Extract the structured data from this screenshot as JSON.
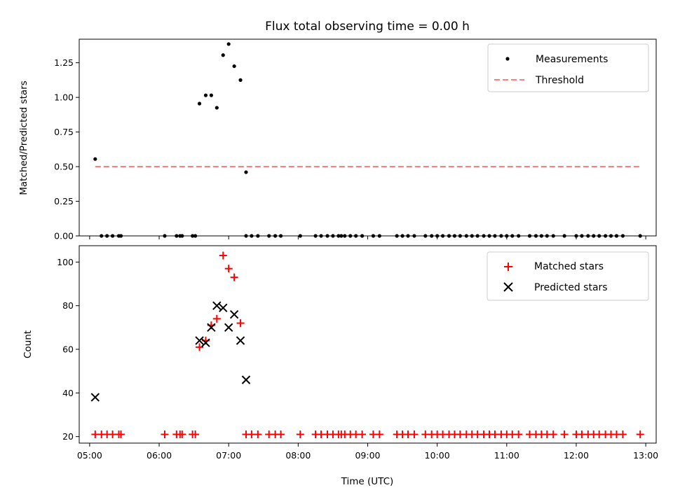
{
  "chart_data": [
    {
      "type": "scatter",
      "title": "Flux total observing time = 0.00 h",
      "xlabel": "",
      "ylabel": "Matched/Predicted stars",
      "xlim": [
        4.85,
        13.15
      ],
      "ylim": [
        0.0,
        1.42
      ],
      "yticks": [
        0.0,
        0.25,
        0.5,
        0.75,
        1.0,
        1.25
      ],
      "ytick_labels": [
        "0.00",
        "0.25",
        "0.50",
        "0.75",
        "1.00",
        "1.25"
      ],
      "legend": {
        "position": "top-right",
        "entries": [
          {
            "label": "Measurements",
            "marker": "dot",
            "color": "#000000"
          },
          {
            "label": "Threshold",
            "marker": "dashed-line",
            "color": "#ff7f7f"
          }
        ]
      },
      "series": [
        {
          "name": "Measurements",
          "color": "#000000",
          "points": [
            [
              5.08,
              0.555
            ],
            [
              6.58,
              0.955
            ],
            [
              6.67,
              1.015
            ],
            [
              6.75,
              1.015
            ],
            [
              6.83,
              0.925
            ],
            [
              6.92,
              1.305
            ],
            [
              7.0,
              1.385
            ],
            [
              7.08,
              1.225
            ],
            [
              7.17,
              1.125
            ],
            [
              7.25,
              0.46
            ],
            [
              5.17,
              0
            ],
            [
              5.25,
              0
            ],
            [
              5.33,
              0
            ],
            [
              5.42,
              0
            ],
            [
              5.45,
              0
            ],
            [
              6.08,
              0
            ],
            [
              6.25,
              0
            ],
            [
              6.3,
              0
            ],
            [
              6.33,
              0
            ],
            [
              6.48,
              0
            ],
            [
              6.52,
              0
            ],
            [
              7.25,
              0
            ],
            [
              7.33,
              0
            ],
            [
              7.42,
              0
            ],
            [
              7.58,
              0
            ],
            [
              7.67,
              0
            ],
            [
              7.75,
              0
            ],
            [
              8.03,
              0
            ],
            [
              8.25,
              0
            ],
            [
              8.33,
              0
            ],
            [
              8.42,
              0
            ],
            [
              8.5,
              0
            ],
            [
              8.58,
              0
            ],
            [
              8.62,
              0
            ],
            [
              8.67,
              0
            ],
            [
              8.75,
              0
            ],
            [
              8.83,
              0
            ],
            [
              8.92,
              0
            ],
            [
              9.08,
              0
            ],
            [
              9.17,
              0
            ],
            [
              9.42,
              0
            ],
            [
              9.5,
              0
            ],
            [
              9.58,
              0
            ],
            [
              9.67,
              0
            ],
            [
              9.83,
              0
            ],
            [
              9.92,
              0
            ],
            [
              10.0,
              0
            ],
            [
              10.08,
              0
            ],
            [
              10.17,
              0
            ],
            [
              10.25,
              0
            ],
            [
              10.33,
              0
            ],
            [
              10.42,
              0
            ],
            [
              10.5,
              0
            ],
            [
              10.58,
              0
            ],
            [
              10.67,
              0
            ],
            [
              10.75,
              0
            ],
            [
              10.83,
              0
            ],
            [
              10.92,
              0
            ],
            [
              11.0,
              0
            ],
            [
              11.08,
              0
            ],
            [
              11.17,
              0
            ],
            [
              11.33,
              0
            ],
            [
              11.42,
              0
            ],
            [
              11.5,
              0
            ],
            [
              11.58,
              0
            ],
            [
              11.67,
              0
            ],
            [
              11.83,
              0
            ],
            [
              12.0,
              0
            ],
            [
              12.08,
              0
            ],
            [
              12.17,
              0
            ],
            [
              12.25,
              0
            ],
            [
              12.33,
              0
            ],
            [
              12.42,
              0
            ],
            [
              12.5,
              0
            ],
            [
              12.58,
              0
            ],
            [
              12.67,
              0
            ],
            [
              12.92,
              0
            ]
          ]
        },
        {
          "name": "Threshold",
          "color": "#ff7f7f",
          "line": [
            [
              5.08,
              0.5
            ],
            [
              12.92,
              0.5
            ]
          ]
        }
      ]
    },
    {
      "type": "scatter",
      "title": "",
      "xlabel": "Time (UTC)",
      "ylabel": "Count",
      "xlim": [
        4.85,
        13.15
      ],
      "ylim": [
        17.0,
        107.5
      ],
      "yticks": [
        20,
        40,
        60,
        80,
        100
      ],
      "ytick_labels": [
        "20",
        "40",
        "60",
        "80",
        "100"
      ],
      "xticks": [
        5,
        6,
        7,
        8,
        9,
        10,
        11,
        12,
        13
      ],
      "xtick_labels": [
        "05:00",
        "06:00",
        "07:00",
        "08:00",
        "09:00",
        "10:00",
        "11:00",
        "12:00",
        "13:00"
      ],
      "legend": {
        "position": "top-right",
        "entries": [
          {
            "label": "Matched stars",
            "marker": "plus",
            "color": "#ff0000"
          },
          {
            "label": "Predicted stars",
            "marker": "x",
            "color": "#000000"
          }
        ]
      },
      "series": [
        {
          "name": "Matched stars",
          "color": "#ff0000",
          "points": [
            [
              6.58,
              61
            ],
            [
              6.67,
              64
            ],
            [
              6.75,
              71
            ],
            [
              6.83,
              74
            ],
            [
              6.92,
              103
            ],
            [
              7.0,
              97
            ],
            [
              7.08,
              93
            ],
            [
              7.17,
              72
            ],
            [
              5.08,
              21
            ],
            [
              5.17,
              21
            ],
            [
              5.25,
              21
            ],
            [
              5.33,
              21
            ],
            [
              5.42,
              21
            ],
            [
              5.45,
              21
            ],
            [
              6.08,
              21
            ],
            [
              6.25,
              21
            ],
            [
              6.3,
              21
            ],
            [
              6.33,
              21
            ],
            [
              6.48,
              21
            ],
            [
              6.52,
              21
            ],
            [
              7.25,
              21
            ],
            [
              7.33,
              21
            ],
            [
              7.42,
              21
            ],
            [
              7.58,
              21
            ],
            [
              7.67,
              21
            ],
            [
              7.75,
              21
            ],
            [
              8.03,
              21
            ],
            [
              8.25,
              21
            ],
            [
              8.33,
              21
            ],
            [
              8.42,
              21
            ],
            [
              8.5,
              21
            ],
            [
              8.58,
              21
            ],
            [
              8.62,
              21
            ],
            [
              8.67,
              21
            ],
            [
              8.75,
              21
            ],
            [
              8.83,
              21
            ],
            [
              8.92,
              21
            ],
            [
              9.08,
              21
            ],
            [
              9.17,
              21
            ],
            [
              9.42,
              21
            ],
            [
              9.5,
              21
            ],
            [
              9.58,
              21
            ],
            [
              9.67,
              21
            ],
            [
              9.83,
              21
            ],
            [
              9.92,
              21
            ],
            [
              10.0,
              21
            ],
            [
              10.08,
              21
            ],
            [
              10.17,
              21
            ],
            [
              10.25,
              21
            ],
            [
              10.33,
              21
            ],
            [
              10.42,
              21
            ],
            [
              10.5,
              21
            ],
            [
              10.58,
              21
            ],
            [
              10.67,
              21
            ],
            [
              10.75,
              21
            ],
            [
              10.83,
              21
            ],
            [
              10.92,
              21
            ],
            [
              11.0,
              21
            ],
            [
              11.08,
              21
            ],
            [
              11.17,
              21
            ],
            [
              11.33,
              21
            ],
            [
              11.42,
              21
            ],
            [
              11.5,
              21
            ],
            [
              11.58,
              21
            ],
            [
              11.67,
              21
            ],
            [
              11.83,
              21
            ],
            [
              12.0,
              21
            ],
            [
              12.08,
              21
            ],
            [
              12.17,
              21
            ],
            [
              12.25,
              21
            ],
            [
              12.33,
              21
            ],
            [
              12.42,
              21
            ],
            [
              12.5,
              21
            ],
            [
              12.58,
              21
            ],
            [
              12.67,
              21
            ],
            [
              12.92,
              21
            ]
          ]
        },
        {
          "name": "Predicted stars",
          "color": "#000000",
          "points": [
            [
              5.08,
              38
            ],
            [
              6.58,
              64
            ],
            [
              6.67,
              63
            ],
            [
              6.75,
              70
            ],
            [
              6.83,
              80
            ],
            [
              6.92,
              79
            ],
            [
              7.0,
              70
            ],
            [
              7.08,
              76
            ],
            [
              7.17,
              64
            ],
            [
              7.25,
              46
            ]
          ]
        }
      ]
    }
  ]
}
